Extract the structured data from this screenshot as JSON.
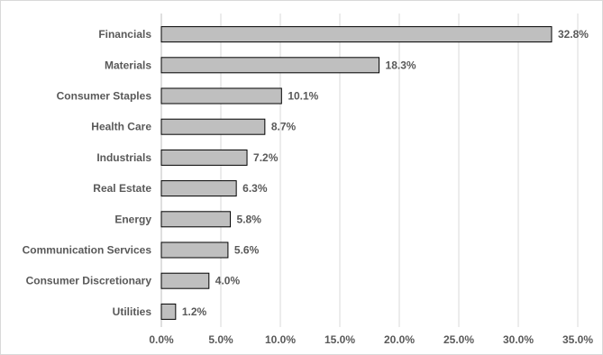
{
  "chart_data": {
    "type": "bar",
    "orientation": "horizontal",
    "categories": [
      "Financials",
      "Materials",
      "Consumer Staples",
      "Health Care",
      "Industrials",
      "Real Estate",
      "Energy",
      "Communication Services",
      "Consumer Discretionary",
      "Utilities"
    ],
    "values": [
      32.8,
      18.3,
      10.1,
      8.7,
      7.2,
      6.3,
      5.8,
      5.6,
      4.0,
      1.2
    ],
    "data_labels": [
      "32.8%",
      "18.3%",
      "10.1%",
      "8.7%",
      "7.2%",
      "6.3%",
      "5.8%",
      "5.6%",
      "4.0%",
      "1.2%"
    ],
    "xlim": [
      0,
      35
    ],
    "x_ticks": [
      0,
      5,
      10,
      15,
      20,
      25,
      30,
      35
    ],
    "x_tick_labels": [
      "0.0%",
      "5.0%",
      "10.0%",
      "15.0%",
      "20.0%",
      "25.0%",
      "30.0%",
      "35.0%"
    ],
    "grid": "vertical",
    "legend": "none",
    "title": "",
    "xlabel": "",
    "ylabel": "",
    "colors": {
      "bar_fill": "#bfbfbf",
      "bar_stroke": "#000000",
      "text": "#595959",
      "grid": "#d9d9d9"
    }
  }
}
